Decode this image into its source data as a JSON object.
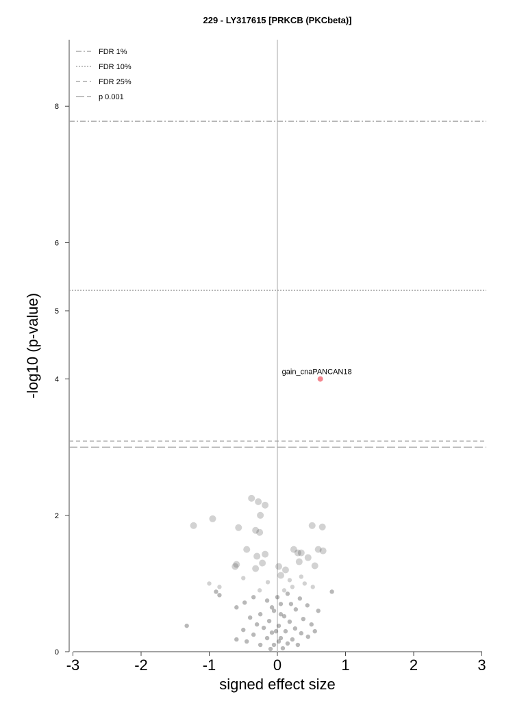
{
  "chart_data": {
    "type": "scatter",
    "title": "229 - LY317615 [PRKCB (PKCbeta)]",
    "xlabel": "signed effect size",
    "ylabel": "-log10 (p-value)",
    "xlim": [
      -3,
      3
    ],
    "ylim": [
      0,
      8.95
    ],
    "xticks": [
      -3,
      -2,
      -1,
      0,
      1,
      2,
      3
    ],
    "yticks": [
      0,
      2,
      4,
      5,
      6,
      8
    ],
    "grid": false,
    "legend_position": "top-left",
    "thresholds": [
      {
        "name": "FDR 1%",
        "y": 7.78,
        "style": "dashdot"
      },
      {
        "name": "FDR 10%",
        "y": 5.3,
        "style": "dotted"
      },
      {
        "name": "FDR 25%",
        "y": 3.09,
        "style": "dashed"
      },
      {
        "name": "p 0.001",
        "y": 3.0,
        "style": "longdash"
      }
    ],
    "highlight": {
      "label": "gain_cnaPANCAN18",
      "x": 0.63,
      "y": 4.0,
      "color": "#f4868f"
    },
    "background_points": [
      [
        -0.38,
        2.25
      ],
      [
        -0.28,
        2.2
      ],
      [
        -0.18,
        2.15
      ],
      [
        -0.25,
        2.0
      ],
      [
        -0.95,
        1.95
      ],
      [
        -1.23,
        1.85
      ],
      [
        0.51,
        1.85
      ],
      [
        0.66,
        1.83
      ],
      [
        -0.57,
        1.82
      ],
      [
        -0.32,
        1.78
      ],
      [
        -0.26,
        1.75
      ],
      [
        -0.45,
        1.5
      ],
      [
        0.24,
        1.5
      ],
      [
        0.35,
        1.45
      ],
      [
        0.6,
        1.5
      ],
      [
        0.67,
        1.48
      ],
      [
        0.3,
        1.45
      ],
      [
        -0.18,
        1.43
      ],
      [
        0.02,
        1.25
      ],
      [
        -0.3,
        1.4
      ],
      [
        0.45,
        1.38
      ],
      [
        -0.22,
        1.3
      ],
      [
        0.32,
        1.32
      ],
      [
        -0.6,
        1.28
      ],
      [
        0.55,
        1.26
      ],
      [
        -0.32,
        1.22
      ],
      [
        0.12,
        1.2
      ],
      [
        -0.62,
        1.25
      ],
      [
        0.05,
        1.12
      ],
      [
        0.35,
        1.1
      ],
      [
        -0.5,
        1.08
      ],
      [
        0.18,
        1.05
      ],
      [
        -0.14,
        1.02
      ],
      [
        0.22,
        0.95
      ],
      [
        -1.0,
        1.0
      ],
      [
        -0.85,
        0.95
      ],
      [
        0.4,
        1.0
      ],
      [
        -0.26,
        0.9
      ],
      [
        0.52,
        0.95
      ],
      [
        0.8,
        0.88
      ],
      [
        -0.9,
        0.88
      ],
      [
        -0.85,
        0.83
      ],
      [
        0.15,
        0.85
      ],
      [
        -0.35,
        0.8
      ],
      [
        0.33,
        0.78
      ],
      [
        -0.15,
        0.75
      ],
      [
        -0.48,
        0.72
      ],
      [
        0.05,
        0.7
      ],
      [
        0.44,
        0.68
      ],
      [
        -0.6,
        0.65
      ],
      [
        0.27,
        0.62
      ],
      [
        -0.05,
        0.6
      ],
      [
        0.6,
        0.6
      ],
      [
        -0.25,
        0.55
      ],
      [
        0.1,
        0.52
      ],
      [
        -0.4,
        0.5
      ],
      [
        0.38,
        0.48
      ],
      [
        -0.12,
        0.45
      ],
      [
        0.18,
        0.44
      ],
      [
        -0.3,
        0.4
      ],
      [
        0.5,
        0.4
      ],
      [
        0.02,
        0.38
      ],
      [
        -0.2,
        0.35
      ],
      [
        0.26,
        0.34
      ],
      [
        -0.5,
        0.32
      ],
      [
        -1.33,
        0.38
      ],
      [
        0.12,
        0.3
      ],
      [
        -0.08,
        0.28
      ],
      [
        0.35,
        0.27
      ],
      [
        -0.35,
        0.25
      ],
      [
        0.45,
        0.22
      ],
      [
        -0.15,
        0.2
      ],
      [
        0.05,
        0.2
      ],
      [
        0.22,
        0.18
      ],
      [
        -0.45,
        0.15
      ],
      [
        0.15,
        0.12
      ],
      [
        -0.05,
        0.1
      ],
      [
        -0.25,
        0.1
      ],
      [
        0.3,
        0.1
      ],
      [
        0.08,
        0.05
      ],
      [
        -0.1,
        0.04
      ],
      [
        0.55,
        0.3
      ],
      [
        -0.6,
        0.18
      ],
      [
        0.0,
        0.8
      ],
      [
        0.05,
        0.55
      ],
      [
        -0.02,
        0.3
      ],
      [
        0.1,
        0.9
      ],
      [
        -0.08,
        0.65
      ],
      [
        0.02,
        0.15
      ],
      [
        0.2,
        0.7
      ]
    ]
  }
}
